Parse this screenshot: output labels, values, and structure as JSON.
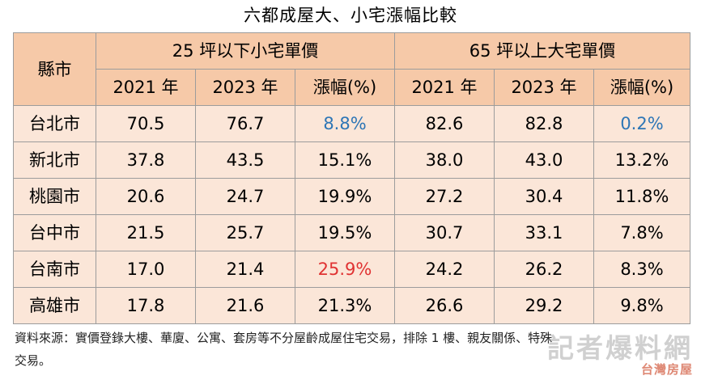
{
  "title": "六都成屋大、小宅漲幅比較",
  "table": {
    "city_header": "縣市",
    "group_small": "25 坪以下小宅單價",
    "group_large": "65 坪以上大宅單價",
    "sub_headers": [
      "2021 年",
      "2023 年",
      "漲幅(%)",
      "2021 年",
      "2023 年",
      "漲幅(%)"
    ],
    "rows": [
      {
        "city": "台北市",
        "s2021": "70.5",
        "s2023": "76.7",
        "schg": "8.8%",
        "l2021": "82.6",
        "l2023": "82.8",
        "lchg": "0.2%"
      },
      {
        "city": "新北市",
        "s2021": "37.8",
        "s2023": "43.5",
        "schg": "15.1%",
        "l2021": "38.0",
        "l2023": "43.0",
        "lchg": "13.2%"
      },
      {
        "city": "桃園市",
        "s2021": "20.6",
        "s2023": "24.7",
        "schg": "19.9%",
        "l2021": "27.2",
        "l2023": "30.4",
        "lchg": "11.8%"
      },
      {
        "city": "台中市",
        "s2021": "21.5",
        "s2023": "25.7",
        "schg": "19.5%",
        "l2021": "30.7",
        "l2023": "33.1",
        "lchg": "7.8%"
      },
      {
        "city": "台南市",
        "s2021": "17.0",
        "s2023": "21.4",
        "schg": "25.9%",
        "l2021": "24.2",
        "l2023": "26.2",
        "lchg": "8.3%"
      },
      {
        "city": "高雄市",
        "s2021": "17.8",
        "s2023": "21.6",
        "schg": "21.3%",
        "l2021": "26.6",
        "l2023": "29.2",
        "lchg": "9.8%"
      }
    ],
    "highlight_colors": {
      "min": "#2e76b6",
      "max": "#e03232"
    }
  },
  "source_line1": "資料來源：實價登錄大樓、華廈、公寓、套房等不分屋齡成屋住宅交易，排除 1 樓、親友關係、特殊",
  "source_line2": "交易。",
  "watermark": {
    "main": "記者爆料網",
    "sub": "台灣房屋"
  }
}
